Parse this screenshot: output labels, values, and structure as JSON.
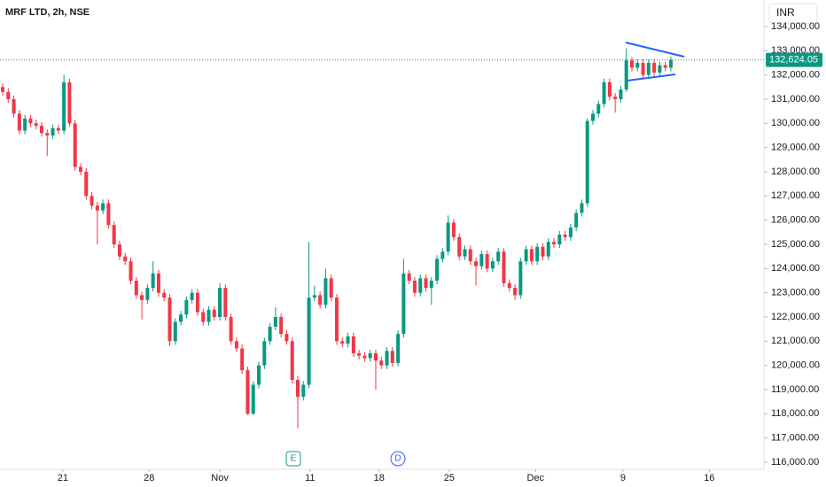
{
  "chart_data": {
    "type": "candlestick",
    "title": "MRF LTD, 2h, NSE",
    "currency": "INR",
    "up_color": "#089981",
    "down_color": "#f23645",
    "open": [
      131500,
      131300,
      131000,
      130400,
      129700,
      130200,
      130000,
      129900,
      129600,
      129500,
      129800,
      129700,
      131700,
      130000,
      128200,
      128000,
      127000,
      126600,
      126400,
      126700,
      125800,
      125000,
      124500,
      124300,
      123500,
      122900,
      122700,
      123200,
      123800,
      123000,
      122800,
      121000,
      121800,
      122100,
      122700,
      123000,
      122200,
      121800,
      122300,
      122000,
      123200,
      122000,
      121000,
      120700,
      119800,
      118000,
      119200,
      120000,
      121000,
      121600,
      122000,
      121300,
      121000,
      119400,
      118700,
      119200,
      122800,
      122900,
      122500,
      123600,
      122800,
      121000,
      120900,
      121200,
      120500,
      120400,
      120300,
      120500,
      120200,
      120000,
      120600,
      120100,
      121300,
      123800,
      123500,
      123000,
      123600,
      123200,
      123500,
      124400,
      124700,
      125900,
      125300,
      124500,
      124800,
      124300,
      124100,
      124600,
      124000,
      124300,
      124700,
      123400,
      123200,
      122900,
      124300,
      124800,
      124300,
      124900,
      124500,
      125100,
      125000,
      125400,
      125300,
      125700,
      126300,
      126700,
      130100,
      130400,
      130800,
      131700,
      131100,
      131000,
      131400,
      132600,
      132300,
      132500,
      132000,
      132500,
      132100,
      132400,
      132300
    ],
    "high": [
      131650,
      131450,
      131150,
      130550,
      130350,
      130350,
      130150,
      130050,
      129750,
      129950,
      129950,
      132000,
      131850,
      130150,
      128350,
      128150,
      127150,
      126750,
      126850,
      126850,
      125950,
      125150,
      124650,
      124450,
      123650,
      123050,
      123350,
      124300,
      123950,
      123150,
      122950,
      121950,
      122250,
      122850,
      123150,
      123150,
      122350,
      122450,
      122450,
      123400,
      123350,
      122150,
      121150,
      120850,
      119950,
      119350,
      120150,
      121150,
      121750,
      122400,
      122150,
      121450,
      121150,
      119550,
      119350,
      125100,
      123300,
      123050,
      124000,
      123750,
      122950,
      121150,
      121350,
      121350,
      120650,
      120550,
      120650,
      120650,
      120350,
      120750,
      120750,
      121450,
      124400,
      123950,
      123650,
      123750,
      123750,
      123650,
      124550,
      124850,
      126200,
      126050,
      125450,
      124950,
      124950,
      124450,
      124750,
      124750,
      124450,
      124850,
      124850,
      123550,
      123350,
      124450,
      124950,
      124950,
      125050,
      125050,
      125250,
      125250,
      125550,
      125550,
      125850,
      126450,
      126850,
      130200,
      130550,
      130950,
      131850,
      131850,
      131250,
      131550,
      133100,
      132750,
      132650,
      132650,
      132650,
      132650,
      132550,
      132550,
      132750
    ],
    "low": [
      131150,
      130850,
      130250,
      129550,
      129550,
      129850,
      129750,
      129450,
      128650,
      129350,
      129550,
      129550,
      129850,
      128050,
      127850,
      126850,
      126450,
      125000,
      126250,
      125650,
      124850,
      124350,
      124150,
      123350,
      122750,
      121900,
      122550,
      123050,
      122850,
      122650,
      120800,
      120850,
      121650,
      121950,
      122550,
      122050,
      121650,
      121650,
      121850,
      121850,
      121850,
      120850,
      120550,
      119650,
      117950,
      117950,
      119050,
      119850,
      120850,
      121450,
      121150,
      120850,
      119250,
      117400,
      118550,
      119050,
      122650,
      122350,
      122350,
      122650,
      120850,
      120750,
      120750,
      120350,
      120250,
      120150,
      120150,
      119000,
      119850,
      119850,
      119950,
      119950,
      121150,
      123350,
      122850,
      122850,
      123050,
      122500,
      123350,
      124250,
      124550,
      125150,
      124350,
      124350,
      124150,
      123300,
      123950,
      123850,
      123850,
      124150,
      123250,
      123050,
      122700,
      122750,
      124150,
      124150,
      124150,
      124350,
      124350,
      124850,
      124850,
      125150,
      125150,
      125550,
      126150,
      126550,
      129950,
      130250,
      130650,
      130950,
      130450,
      130850,
      131300,
      132150,
      132150,
      131850,
      131850,
      131950,
      131950,
      132150,
      132150
    ],
    "close": [
      131300,
      131000,
      130400,
      129700,
      130200,
      130000,
      129900,
      129600,
      129500,
      129800,
      129700,
      131700,
      130000,
      128200,
      128000,
      127000,
      126600,
      126400,
      126700,
      125800,
      125000,
      124500,
      124300,
      123500,
      122900,
      122700,
      123200,
      123800,
      123000,
      122800,
      121000,
      121800,
      122100,
      122700,
      123000,
      122200,
      121800,
      122300,
      122000,
      123200,
      122000,
      121000,
      120700,
      119800,
      118000,
      119200,
      120000,
      121000,
      121600,
      122000,
      121300,
      121000,
      119400,
      118700,
      119200,
      122800,
      122900,
      122500,
      123600,
      122800,
      121000,
      120900,
      121200,
      120500,
      120400,
      120300,
      120500,
      120200,
      120000,
      120600,
      120100,
      121300,
      123800,
      123500,
      123000,
      123600,
      123200,
      123500,
      124400,
      124700,
      125900,
      125300,
      124500,
      124800,
      124300,
      124100,
      124600,
      124000,
      124300,
      124700,
      123400,
      123200,
      122900,
      124300,
      124800,
      124300,
      124900,
      124500,
      125100,
      125000,
      125400,
      125300,
      125700,
      126300,
      126700,
      130100,
      130400,
      130800,
      131700,
      131100,
      131000,
      131400,
      132600,
      132300,
      132500,
      132000,
      132500,
      132100,
      132400,
      132300,
      132624.05
    ],
    "last_price": {
      "value": 132624.05,
      "label": "132,624.05"
    },
    "xlim": [
      -0.48,
      136.4
    ],
    "xticks": [
      {
        "value": 10.8,
        "label": "21"
      },
      {
        "value": 26.3,
        "label": "28"
      },
      {
        "value": 39,
        "label": "Nov"
      },
      {
        "value": 55.2,
        "label": "11"
      },
      {
        "value": 67.6,
        "label": "18"
      },
      {
        "value": 80.2,
        "label": "25"
      },
      {
        "value": 95.7,
        "label": "Dec"
      },
      {
        "value": 111.4,
        "label": "9"
      },
      {
        "value": 126.9,
        "label": "16"
      }
    ],
    "ylim": [
      115707,
      135097
    ],
    "yticks": [
      {
        "value": 116000,
        "label": "116,000.00"
      },
      {
        "value": 117000,
        "label": "117,000.00"
      },
      {
        "value": 118000,
        "label": "118,000.00"
      },
      {
        "value": 119000,
        "label": "119,000.00"
      },
      {
        "value": 120000,
        "label": "120,000.00"
      },
      {
        "value": 121000,
        "label": "121,000.00"
      },
      {
        "value": 122000,
        "label": "122,000.00"
      },
      {
        "value": 123000,
        "label": "123,000.00"
      },
      {
        "value": 124000,
        "label": "124,000.00"
      },
      {
        "value": 125000,
        "label": "125,000.00"
      },
      {
        "value": 126000,
        "label": "126,000.00"
      },
      {
        "value": 127000,
        "label": "127,000.00"
      },
      {
        "value": 128000,
        "label": "128,000.00"
      },
      {
        "value": 129000,
        "label": "129,000.00"
      },
      {
        "value": 130000,
        "label": "130,000.00"
      },
      {
        "value": 131000,
        "label": "131,000.00"
      },
      {
        "value": 132000,
        "label": "132,000.00"
      },
      {
        "value": 133000,
        "label": "133,000.00"
      },
      {
        "value": 134000,
        "label": "134,000.00"
      }
    ],
    "events": [
      {
        "label": "E"
      },
      {
        "label": "D"
      }
    ]
  }
}
